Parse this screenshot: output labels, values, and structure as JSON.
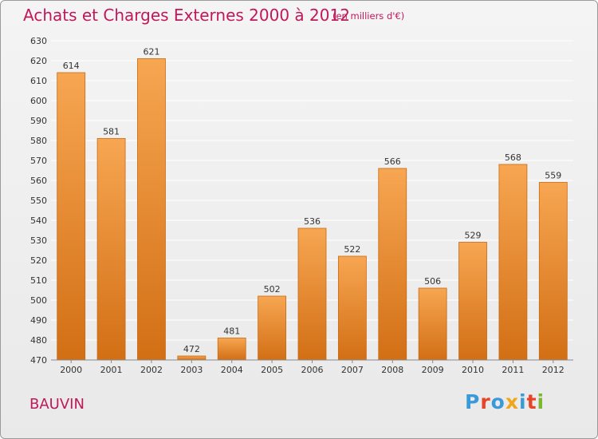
{
  "header": {
    "title": "Achats et Charges Externes 2000 à 2012",
    "subtitle": "(en milliers d'€)"
  },
  "footer": {
    "commune": "BAUVIN",
    "logo_text": "Proxiti",
    "logo_colors": [
      "#3a9ad9",
      "#e8442a",
      "#3a9ad9",
      "#f0a61a",
      "#3a9ad9",
      "#e8442a",
      "#7cb82f"
    ]
  },
  "chart_data": {
    "type": "bar",
    "title": "Achats et Charges Externes 2000 à 2012",
    "subtitle": "(en milliers d'€)",
    "xlabel": "",
    "ylabel": "",
    "categories": [
      "2000",
      "2001",
      "2002",
      "2003",
      "2004",
      "2005",
      "2006",
      "2007",
      "2008",
      "2009",
      "2010",
      "2011",
      "2012"
    ],
    "values": [
      614,
      581,
      621,
      472,
      481,
      502,
      536,
      522,
      566,
      506,
      529,
      568,
      559
    ],
    "ylim": [
      470,
      630
    ],
    "yticks": [
      470,
      480,
      490,
      500,
      510,
      520,
      530,
      540,
      550,
      560,
      570,
      580,
      590,
      600,
      610,
      620,
      630
    ],
    "grid": true,
    "legend": "none",
    "colors": {
      "bar_light": "#f7a652",
      "bar_dark": "#d26f15",
      "bar_edge": "#c86a12",
      "grid": "#ffffff",
      "text": "#333333"
    }
  }
}
